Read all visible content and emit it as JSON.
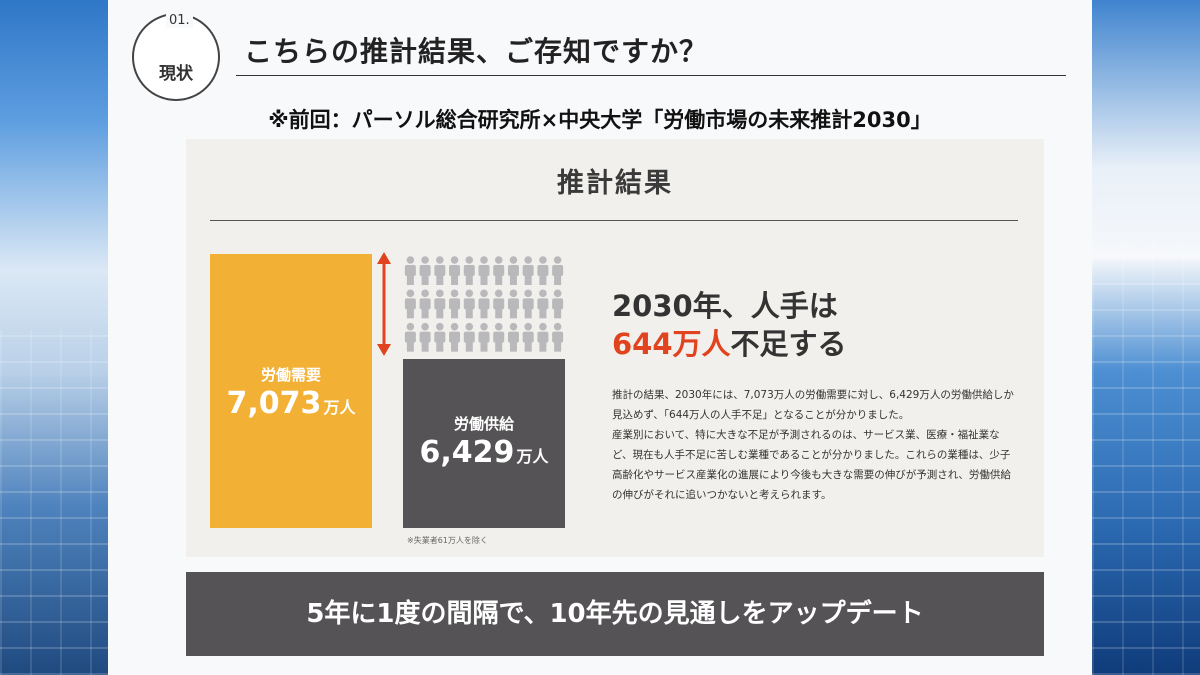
{
  "header": {
    "section_number": "01.",
    "section_label": "現状",
    "title": "こちらの推計結果、ご存知ですか？",
    "subtitle": "※前回：パーソル総合研究所×中央大学「労働市場の未来推計2030」"
  },
  "panel": {
    "title": "推計結果",
    "demand": {
      "label": "労働需要",
      "value": "7,073",
      "unit": "万人"
    },
    "supply": {
      "label": "労働供給",
      "value": "6,429",
      "unit": "万人"
    },
    "footnote": "※失業者61万人を除く",
    "headline_line1": "2030年、人手は",
    "headline_highlight": "644万人",
    "headline_rest": "不足する",
    "body_paragraphs": [
      "推計の結果、2030年には、7,073万人の労働需要に対し、6,429万人の労働供給しか見込めず、「644万人の人手不足」となることが分かりました。",
      "産業別において、特に大きな不足が予測されるのは、サービス業、医療・福祉業など、現在も人手不足に苦しむ業種であることが分かりました。これらの業種は、少子高齢化やサービス産業化の進展により今後も大きな需要の伸びが予測され、労働供給の伸びがそれに追いつかないと考えられます。"
    ]
  },
  "banner": {
    "text": "5年に1度の間隔で、10年先の見通しをアップデート"
  },
  "colors": {
    "demand": "#f2b035",
    "supply": "#555355",
    "shortage_accent": "#e2431f",
    "people_icon": "#b9b9bb"
  },
  "icons": {
    "shortage_arrow": "double-arrow-vertical-icon",
    "person": "person-icon"
  }
}
